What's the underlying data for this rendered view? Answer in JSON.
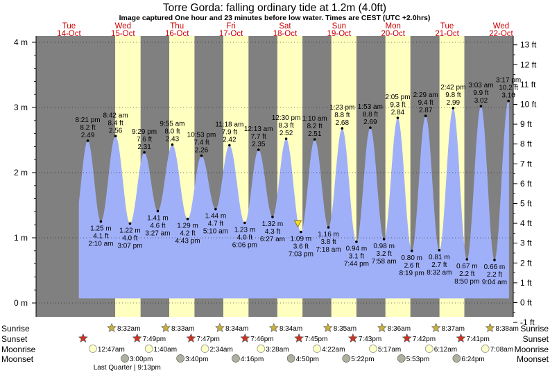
{
  "header": {
    "title": "Torre Gorda: falling  ordinary tide at 1.2m (4.0ft)",
    "subtitle": "Image captured One hour and 23 minutes before low water. Times are CEST (UTC +2.0hrs)"
  },
  "colors": {
    "night": "#808080",
    "day": "#ffffc0",
    "water": "#a0b0f8",
    "axis_text": "#000000",
    "day_label": "#cc0000",
    "sun_star": "#c8b040",
    "sunset_star": "#cc3322",
    "moonrise": "#ffffc8",
    "moonset": "#b0b0a0"
  },
  "days": [
    {
      "name": "Tue",
      "date": "14-Oct"
    },
    {
      "name": "Wed",
      "date": "15-Oct"
    },
    {
      "name": "Thu",
      "date": "16-Oct"
    },
    {
      "name": "Fri",
      "date": "17-Oct"
    },
    {
      "name": "Sat",
      "date": "18-Oct"
    },
    {
      "name": "Sun",
      "date": "19-Oct"
    },
    {
      "name": "Mon",
      "date": "20-Oct"
    },
    {
      "name": "Tue",
      "date": "21-Oct"
    },
    {
      "name": "Wed",
      "date": "22-Oct"
    }
  ],
  "chart_data": {
    "type": "area",
    "x_unit": "hours from 00:00 14-Oct (CEST)",
    "y_unit": "m",
    "ylim_m": [
      -0.3,
      4.1
    ],
    "left_axis_ticks": [
      "0 m",
      "1 m",
      "2 m",
      "3 m",
      "4 m"
    ],
    "right_axis_ticks": [
      "-1 ft",
      "0 ft",
      "1 ft",
      "2 ft",
      "3 ft",
      "4 ft",
      "5 ft",
      "6 ft",
      "7 ft",
      "8 ft",
      "9 ft",
      "10 ft",
      "11 ft",
      "12 ft",
      "13 ft"
    ],
    "current_marker": {
      "height_m": 1.2
    },
    "tides": [
      {
        "type": "high",
        "time": "8:21 pm",
        "m": "2.49",
        "ft": "8.2 ft",
        "h": 20.35
      },
      {
        "type": "low",
        "time": "2:10 am",
        "m": "1.25 m",
        "ft": "4.1 ft",
        "h": 26.17
      },
      {
        "type": "high",
        "time": "8:42 am",
        "m": "2.56",
        "ft": "8.4 ft",
        "h": 32.7
      },
      {
        "type": "low",
        "time": "3:07 pm",
        "m": "1.22 m",
        "ft": "4.0 ft",
        "h": 39.12
      },
      {
        "type": "high",
        "time": "9:29 pm",
        "m": "2.31",
        "ft": "7.6 ft",
        "h": 45.48
      },
      {
        "type": "low",
        "time": "3:27 am",
        "m": "1.41 m",
        "ft": "4.6 ft",
        "h": 51.45
      },
      {
        "type": "high",
        "time": "9:55 am",
        "m": "2.43",
        "ft": "8.0 ft",
        "h": 57.92
      },
      {
        "type": "low",
        "time": "4:43 pm",
        "m": "1.29 m",
        "ft": "4.2 ft",
        "h": 64.72
      },
      {
        "type": "high",
        "time": "10:53 pm",
        "m": "2.26",
        "ft": "7.4 ft",
        "h": 70.88
      },
      {
        "type": "low",
        "time": "5:10 am",
        "m": "1.44 m",
        "ft": "4.7 ft",
        "h": 77.17
      },
      {
        "type": "high",
        "time": "11:18 am",
        "m": "2.42",
        "ft": "7.9 ft",
        "h": 83.3
      },
      {
        "type": "low",
        "time": "6:06 pm",
        "m": "1.23 m",
        "ft": "4.0 ft",
        "h": 90.1
      },
      {
        "type": "high",
        "time": "12:13 am",
        "m": "2.35",
        "ft": "7.7 ft",
        "h": 96.22
      },
      {
        "type": "low",
        "time": "6:27 am",
        "m": "1.32 m",
        "ft": "4.3 ft",
        "h": 102.45
      },
      {
        "type": "high",
        "time": "12:30 pm",
        "m": "2.52",
        "ft": "8.3 ft",
        "h": 108.5
      },
      {
        "type": "low",
        "time": "7:03 pm",
        "m": "1.09 m",
        "ft": "3.6 ft",
        "h": 115.05
      },
      {
        "type": "high",
        "time": "1:10 am",
        "m": "2.51",
        "ft": "8.2 ft",
        "h": 121.17
      },
      {
        "type": "low",
        "time": "7:18 am",
        "m": "1.16 m",
        "ft": "3.8 ft",
        "h": 127.3
      },
      {
        "type": "high",
        "time": "1:23 pm",
        "m": "2.68",
        "ft": "8.8 ft",
        "h": 133.38
      },
      {
        "type": "low",
        "time": "7:44 pm",
        "m": "0.94 m",
        "ft": "3.1 ft",
        "h": 139.73
      },
      {
        "type": "high",
        "time": "1:53 am",
        "m": "2.69",
        "ft": "8.8 ft",
        "h": 145.88
      },
      {
        "type": "low",
        "time": "7:58 am",
        "m": "0.98 m",
        "ft": "3.2 ft",
        "h": 151.97
      },
      {
        "type": "high",
        "time": "2:05 pm",
        "m": "2.84",
        "ft": "9.3 ft",
        "h": 158.08
      },
      {
        "type": "low",
        "time": "8:19 pm",
        "m": "0.80 m",
        "ft": "2.6 ft",
        "h": 164.32
      },
      {
        "type": "high",
        "time": "2:29 am",
        "m": "2.87",
        "ft": "9.4 ft",
        "h": 170.48
      },
      {
        "type": "low",
        "time": "8:32 am",
        "m": "0.81 m",
        "ft": "2.7 ft",
        "h": 176.53
      },
      {
        "type": "high",
        "time": "2:42 pm",
        "m": "2.99",
        "ft": "9.8 ft",
        "h": 182.7
      },
      {
        "type": "low",
        "time": "8:50 pm",
        "m": "0.67 m",
        "ft": "2.2 ft",
        "h": 188.83
      },
      {
        "type": "high",
        "time": "3:03 am",
        "m": "3.02",
        "ft": "9.9 ft",
        "h": 195.05
      },
      {
        "type": "low",
        "time": "9:04 am",
        "m": "0.66 m",
        "ft": "2.2 ft",
        "h": 201.07
      },
      {
        "type": "high",
        "time": "3:17 pm",
        "m": "3.10",
        "ft": "10.2 ft",
        "h": 207.28
      }
    ]
  },
  "almanac": {
    "labels": {
      "sunrise": "Sunrise",
      "sunset": "Sunset",
      "moonrise": "Moonrise",
      "moonset": "Moonset"
    },
    "sunrise": [
      {
        "time": "8:32am",
        "h": 32.53
      },
      {
        "time": "8:33am",
        "h": 56.55
      },
      {
        "time": "8:34am",
        "h": 80.57
      },
      {
        "time": "8:34am",
        "h": 104.57
      },
      {
        "time": "8:35am",
        "h": 128.58
      },
      {
        "time": "8:36am",
        "h": 152.6
      },
      {
        "time": "8:37am",
        "h": 176.62
      },
      {
        "time": "8:38am",
        "h": 200.63
      }
    ],
    "sunset": [
      {
        "time": "7:49pm",
        "h": 43.82
      },
      {
        "time": "7:47pm",
        "h": 67.78
      },
      {
        "time": "7:46pm",
        "h": 91.77
      },
      {
        "time": "7:45pm",
        "h": 115.75
      },
      {
        "time": "7:43pm",
        "h": 139.72
      },
      {
        "time": "7:42pm",
        "h": 163.7
      },
      {
        "time": "7:41pm",
        "h": 187.68
      }
    ],
    "sunset_day0_h": 19.83,
    "moonrise": [
      {
        "time": "12:47am",
        "h": 24.78
      },
      {
        "time": "1:40am",
        "h": 49.67
      },
      {
        "time": "2:34am",
        "h": 74.57
      },
      {
        "time": "3:28am",
        "h": 99.47
      },
      {
        "time": "4:22am",
        "h": 124.37
      },
      {
        "time": "5:17am",
        "h": 149.28
      },
      {
        "time": "6:12am",
        "h": 174.2
      },
      {
        "time": "7:08am",
        "h": 199.13
      }
    ],
    "moonset": [
      {
        "time": "3:00pm",
        "h": 39.0
      },
      {
        "time": "3:40pm",
        "h": 63.67
      },
      {
        "time": "4:16pm",
        "h": 88.27
      },
      {
        "time": "4:50pm",
        "h": 112.83
      },
      {
        "time": "5:22pm",
        "h": 137.37
      },
      {
        "time": "5:53pm",
        "h": 161.88
      },
      {
        "time": "6:24pm",
        "h": 186.4
      }
    ],
    "moon_phase": {
      "text": "Last Quarter | 9:13pm",
      "h": 45.22
    }
  }
}
